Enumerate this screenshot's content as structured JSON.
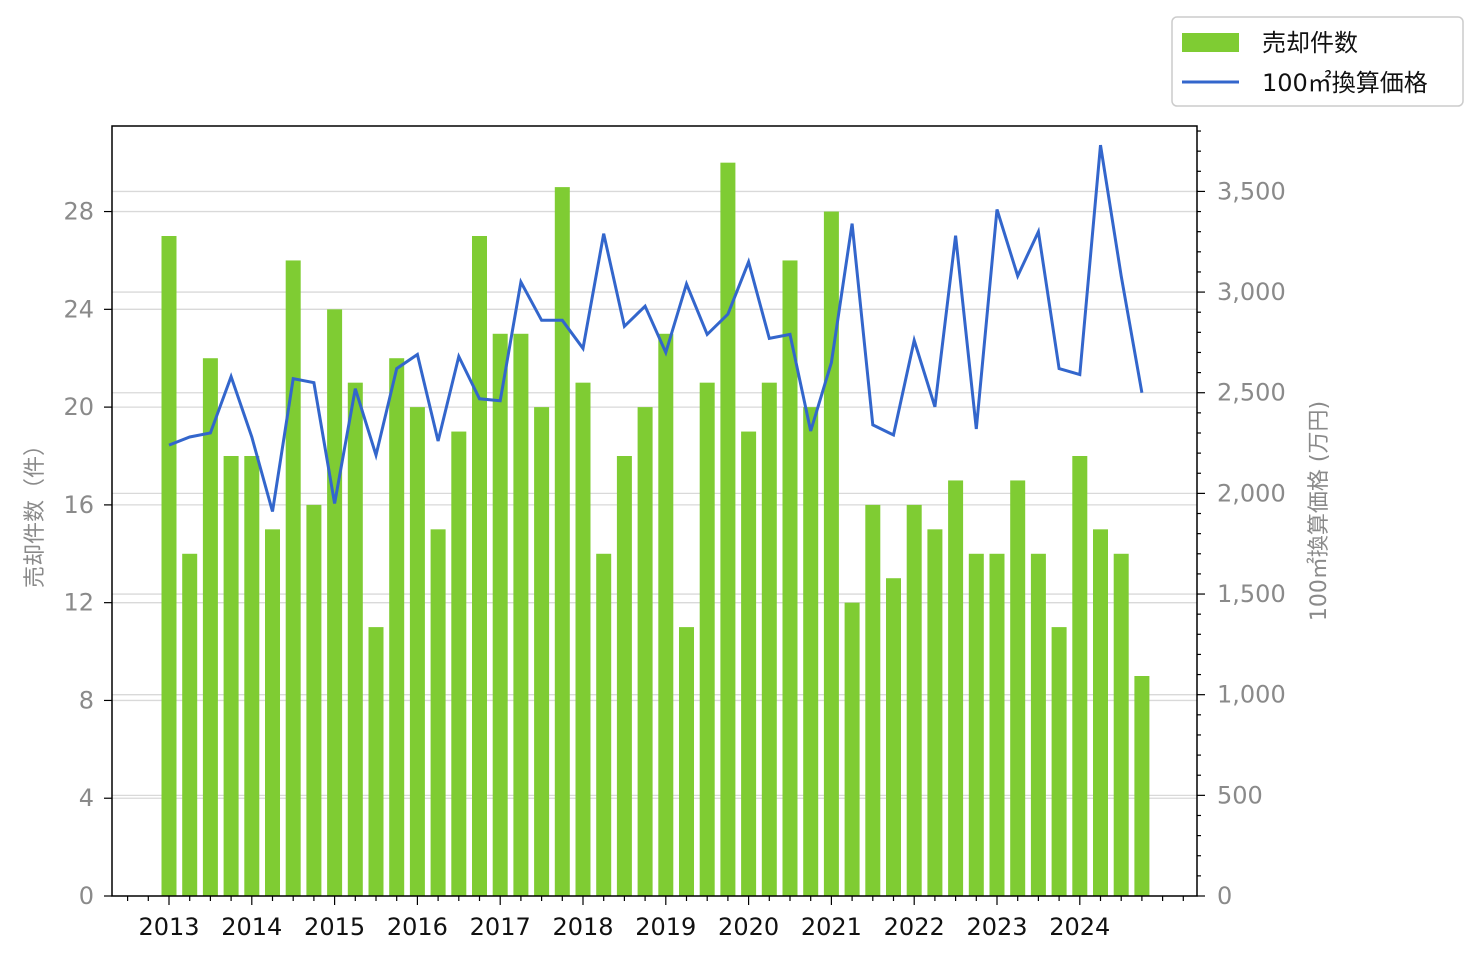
{
  "chart_data": {
    "type": "bar",
    "x_tick_labels": [
      "2013",
      "2014",
      "2015",
      "2016",
      "2017",
      "2018",
      "2019",
      "2020",
      "2021",
      "2022",
      "2023",
      "2024"
    ],
    "series": [
      {
        "name": "売却件数",
        "type": "bar",
        "axis": "left",
        "color": "#7fcc33",
        "values": [
          27,
          14,
          22,
          18,
          18,
          15,
          26,
          16,
          24,
          21,
          11,
          22,
          20,
          15,
          19,
          27,
          23,
          23,
          20,
          29,
          21,
          14,
          18,
          20,
          23,
          11,
          21,
          30,
          19,
          21,
          26,
          20,
          28,
          12,
          16,
          13,
          16,
          15,
          17,
          14,
          14,
          17,
          14,
          11,
          18,
          15,
          14,
          9
        ]
      },
      {
        "name": "100㎡換算価格",
        "type": "line",
        "axis": "right",
        "color": "#3366cc",
        "values": [
          2240,
          2280,
          2300,
          2580,
          2280,
          1910,
          2570,
          2550,
          1950,
          2520,
          2190,
          2620,
          2690,
          2260,
          2680,
          2470,
          2460,
          3050,
          2860,
          2860,
          2720,
          3290,
          2830,
          2930,
          2700,
          3040,
          2790,
          2890,
          3150,
          2770,
          2790,
          2310,
          2650,
          3340,
          2340,
          2290,
          2760,
          2430,
          3280,
          2320,
          3410,
          3080,
          3300,
          2620,
          2590,
          3730,
          3080,
          2500
        ]
      }
    ],
    "left_axis": {
      "label": "売却件数（件）",
      "ylim": [
        0,
        31.5
      ],
      "ticks": [
        0,
        4,
        8,
        12,
        16,
        20,
        24,
        28
      ]
    },
    "right_axis": {
      "label": "100㎡換算価格 (万円)",
      "ylim": [
        0,
        3825
      ],
      "ticks": [
        "0",
        "500",
        "1,000",
        "1,500",
        "2,000",
        "2,500",
        "3,000",
        "3,500"
      ]
    },
    "grid": true,
    "legend_position": "top-right",
    "legend": [
      "売却件数",
      "100㎡換算価格"
    ]
  }
}
